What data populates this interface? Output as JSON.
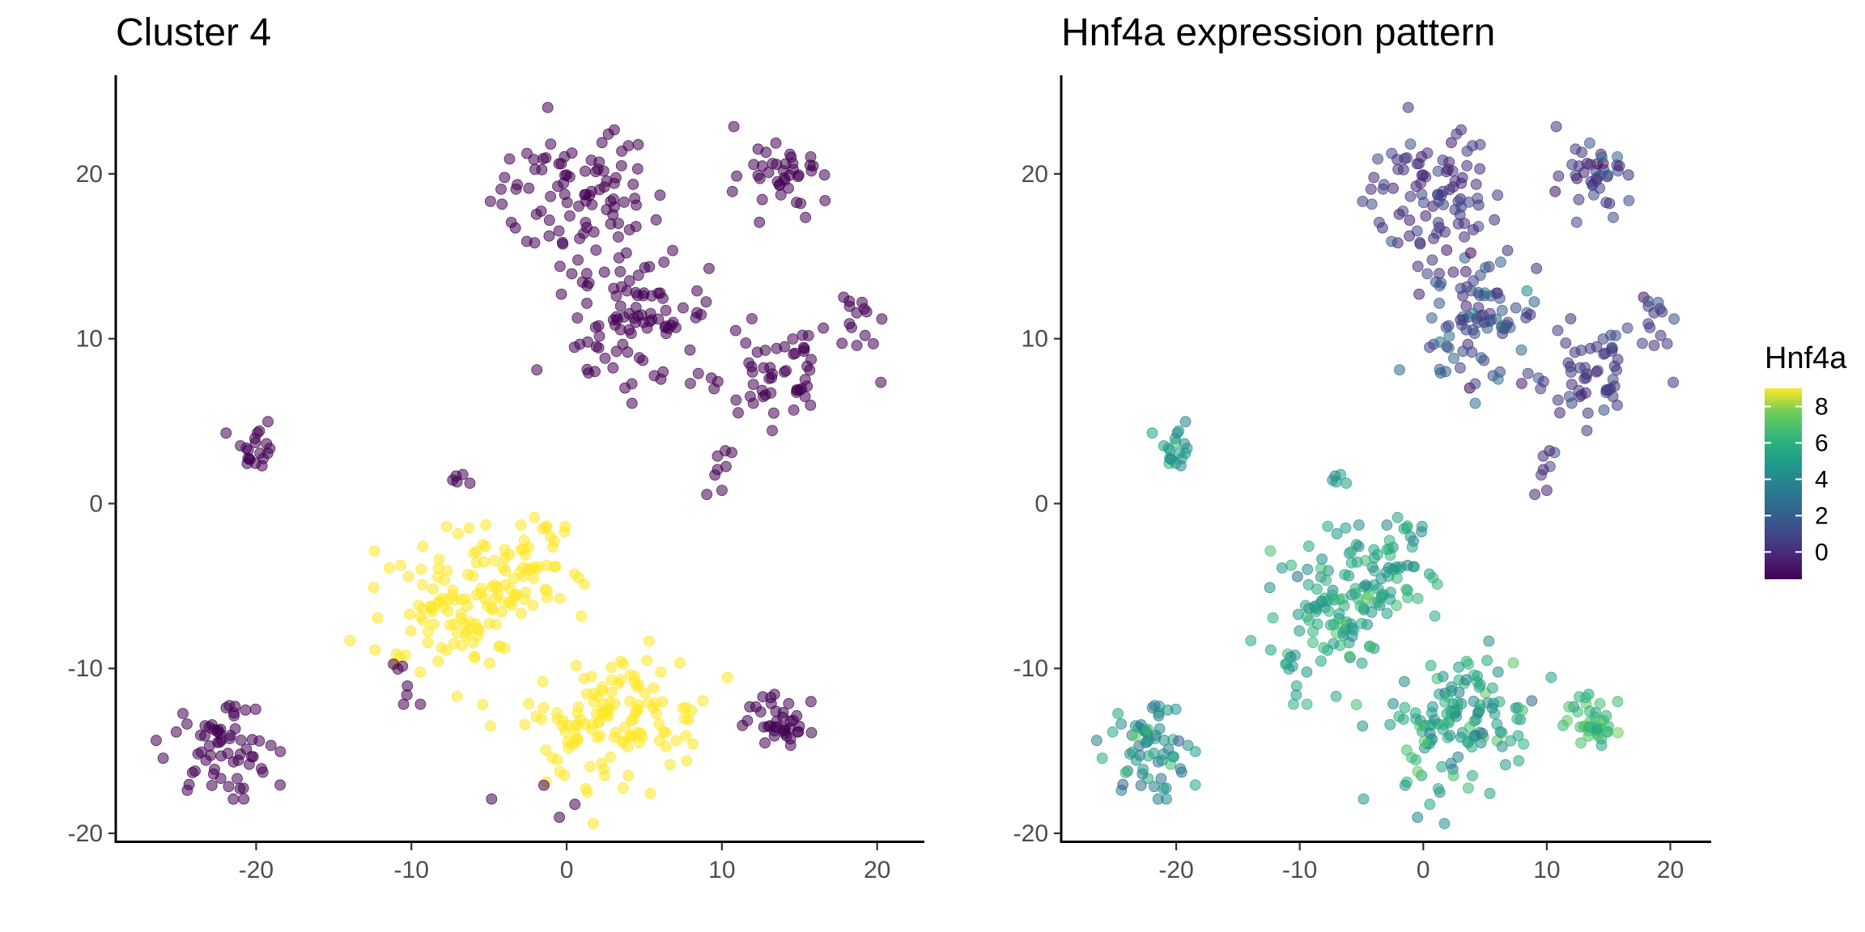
{
  "chart_data": [
    {
      "type": "scatter",
      "title": "Cluster 4",
      "xlabel": "",
      "ylabel": "",
      "xlim": [
        -28,
        22
      ],
      "ylim": [
        -20,
        25
      ],
      "x_ticks": [
        "-20",
        "-10",
        "0",
        "10",
        "20"
      ],
      "y_ticks": [
        "-20",
        "-10",
        "0",
        "10",
        "20"
      ],
      "grid": false,
      "legend": "none",
      "colors": {
        "in_cluster": "#FDE725",
        "other": "#440154"
      },
      "point_alpha": 0.55
    },
    {
      "type": "scatter",
      "title": "Hnf4a expression pattern",
      "xlabel": "",
      "ylabel": "",
      "xlim": [
        -28,
        22
      ],
      "ylim": [
        -20,
        25
      ],
      "x_ticks": [
        "-20",
        "-10",
        "0",
        "10",
        "20"
      ],
      "y_ticks": [
        "-20",
        "-10",
        "0",
        "10",
        "20"
      ],
      "grid": false,
      "legend": "right",
      "color_scale": "viridis",
      "colorbar": {
        "title": "Hnf4a",
        "range": [
          -1.5,
          9
        ],
        "tick_values": [
          0,
          2,
          4,
          6,
          8
        ],
        "tick_labels": [
          "0",
          "2",
          "4",
          "6",
          "8"
        ]
      },
      "point_alpha": 0.55
    }
  ],
  "clusters": [
    {
      "id": "A",
      "cx": 0.5,
      "cy": 18.5,
      "sx": 3.2,
      "sy": 2.6,
      "n": 95,
      "in_cluster": false,
      "expr_mean": 0.3,
      "expr_sd": 0.6
    },
    {
      "id": "B",
      "cx": 14.0,
      "cy": 20.0,
      "sx": 1.8,
      "sy": 1.5,
      "n": 40,
      "in_cluster": false,
      "expr_mean": 0.5,
      "expr_sd": 0.8
    },
    {
      "id": "C",
      "cx": 5.0,
      "cy": 11.0,
      "sx": 2.4,
      "sy": 2.2,
      "n": 85,
      "in_cluster": false,
      "expr_mean": 1.2,
      "expr_sd": 1.0
    },
    {
      "id": "D",
      "cx": 13.0,
      "cy": 8.0,
      "sx": 2.6,
      "sy": 2.0,
      "n": 55,
      "in_cluster": false,
      "expr_mean": 0.5,
      "expr_sd": 0.6
    },
    {
      "id": "E",
      "cx": 18.5,
      "cy": 11.0,
      "sx": 1.0,
      "sy": 1.0,
      "n": 14,
      "in_cluster": false,
      "expr_mean": 0.6,
      "expr_sd": 0.6
    },
    {
      "id": "F",
      "cx": 9.8,
      "cy": 2.5,
      "sx": 0.4,
      "sy": 0.9,
      "n": 8,
      "in_cluster": false,
      "expr_mean": 0.4,
      "expr_sd": 0.7
    },
    {
      "id": "G",
      "cx": -20.0,
      "cy": 3.5,
      "sx": 0.8,
      "sy": 0.9,
      "n": 20,
      "in_cluster": false,
      "expr_mean": 4.8,
      "expr_sd": 0.8
    },
    {
      "id": "H",
      "cx": -22.5,
      "cy": -14.5,
      "sx": 2.0,
      "sy": 1.8,
      "n": 65,
      "in_cluster": false,
      "expr_mean": 4.3,
      "expr_sd": 1.0
    },
    {
      "id": "I",
      "cx": 13.8,
      "cy": -13.5,
      "sx": 1.4,
      "sy": 1.2,
      "n": 38,
      "in_cluster": false,
      "expr_mean": 6.3,
      "expr_sd": 0.9
    },
    {
      "id": "J",
      "cx": -7.0,
      "cy": -6.0,
      "sx": 3.3,
      "sy": 2.3,
      "n": 110,
      "in_cluster": true,
      "expr_mean": 5.2,
      "expr_sd": 0.9
    },
    {
      "id": "K",
      "cx": -2.5,
      "cy": -3.5,
      "sx": 2.0,
      "sy": 1.8,
      "n": 45,
      "in_cluster": true,
      "expr_mean": 5.2,
      "expr_sd": 1.0
    },
    {
      "id": "L",
      "cx": 3.0,
      "cy": -13.0,
      "sx": 3.3,
      "sy": 2.4,
      "n": 130,
      "in_cluster": true,
      "expr_mean": 5.2,
      "expr_sd": 1.0
    },
    {
      "id": "M",
      "cx": -10.5,
      "cy": -11.0,
      "sx": 0.8,
      "sy": 1.0,
      "n": 7,
      "in_cluster": false,
      "expr_mean": 5.3,
      "expr_sd": 0.5
    },
    {
      "id": "N",
      "cx": -6.0,
      "cy": 1.5,
      "sx": 0.9,
      "sy": 0.3,
      "n": 5,
      "in_cluster": false,
      "expr_mean": 5.0,
      "expr_sd": 0.5
    },
    {
      "id": "O",
      "cx": -1.0,
      "cy": -18.0,
      "sx": 1.2,
      "sy": 0.6,
      "n": 4,
      "in_cluster": false,
      "expr_mean": 5.0,
      "expr_sd": 0.5
    },
    {
      "id": "P",
      "cx": 1.5,
      "cy": 8.0,
      "sx": 0.3,
      "sy": 0.3,
      "n": 3,
      "in_cluster": false,
      "expr_mean": 2.0,
      "expr_sd": 0.5
    }
  ]
}
